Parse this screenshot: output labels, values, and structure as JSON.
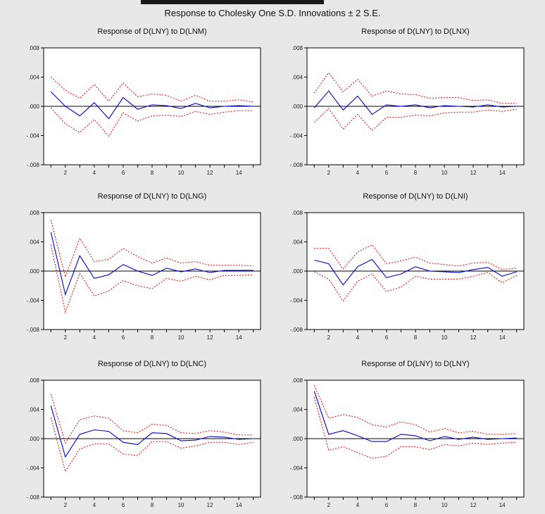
{
  "page": {
    "title": "Response to Cholesky One S.D. Innovations ± 2 S.E."
  },
  "colors": {
    "background": "#e8e8e8",
    "plot_area": "#ffffff",
    "response_line": "#0000cc",
    "band_line": "#dd0000",
    "zero_line": "#000000"
  },
  "chart_data": [
    {
      "type": "line",
      "title": "Response of D(LNY) to D(LNM)",
      "x": [
        1,
        2,
        3,
        4,
        5,
        6,
        7,
        8,
        9,
        10,
        11,
        12,
        13,
        14,
        15
      ],
      "xticks": [
        2,
        4,
        6,
        8,
        10,
        12,
        14
      ],
      "ylim": [
        -0.008,
        0.008
      ],
      "yticks": [
        -0.008,
        -0.004,
        0.0,
        0.004,
        0.008
      ],
      "ytick_labels": [
        "-.008",
        "-.004",
        ".000",
        ".004",
        ".008"
      ],
      "grid": false,
      "series": [
        {
          "role": "response",
          "values": [
            0.002,
            0.0,
            -0.0013,
            0.0005,
            -0.0017,
            0.0012,
            -0.0004,
            0.0002,
            0.0001,
            -0.0003,
            0.0004,
            -0.0002,
            0.0,
            0.0001,
            0.0
          ]
        },
        {
          "role": "upper",
          "values": [
            0.004,
            0.0022,
            0.0011,
            0.003,
            0.0007,
            0.0032,
            0.0013,
            0.0017,
            0.0015,
            0.0007,
            0.0015,
            0.0007,
            0.0007,
            0.0009,
            0.0006
          ]
        },
        {
          "role": "lower",
          "values": [
            -0.0002,
            -0.0024,
            -0.0036,
            -0.0018,
            -0.0041,
            -0.0009,
            -0.002,
            -0.0013,
            -0.0012,
            -0.0014,
            -0.0007,
            -0.0011,
            -0.0008,
            -0.0006,
            -0.0006
          ]
        }
      ]
    },
    {
      "type": "line",
      "title": "Response of D(LNY) to D(LNX)",
      "x": [
        1,
        2,
        3,
        4,
        5,
        6,
        7,
        8,
        9,
        10,
        11,
        12,
        13,
        14,
        15
      ],
      "xticks": [
        2,
        4,
        6,
        8,
        10,
        12,
        14
      ],
      "ylim": [
        -0.008,
        0.008
      ],
      "yticks": [
        -0.008,
        -0.004,
        0.0,
        0.004,
        0.008
      ],
      "ytick_labels": [
        "-.008",
        "-.004",
        ".000",
        ".004",
        ".008"
      ],
      "grid": false,
      "series": [
        {
          "role": "response",
          "values": [
            -0.0002,
            0.0021,
            -0.0005,
            0.0014,
            -0.0011,
            0.0002,
            0.0,
            0.0002,
            -0.0002,
            0.0001,
            0.0,
            -0.0001,
            0.0002,
            -0.0001,
            0.0
          ]
        },
        {
          "role": "upper",
          "values": [
            0.0018,
            0.0046,
            0.002,
            0.0037,
            0.0014,
            0.0021,
            0.0017,
            0.0016,
            0.0011,
            0.0012,
            0.0012,
            0.0008,
            0.0009,
            0.0004,
            0.0004
          ]
        },
        {
          "role": "lower",
          "values": [
            -0.0022,
            -0.0003,
            -0.0031,
            -0.0011,
            -0.0033,
            -0.0015,
            -0.0015,
            -0.0012,
            -0.0013,
            -0.0009,
            -0.0008,
            -0.0008,
            -0.0005,
            -0.0007,
            -0.0004
          ]
        }
      ]
    },
    {
      "type": "line",
      "title": "Response of D(LNY) to D(LNG)",
      "x": [
        1,
        2,
        3,
        4,
        5,
        6,
        7,
        8,
        9,
        10,
        11,
        12,
        13,
        14,
        15
      ],
      "xticks": [
        2,
        4,
        6,
        8,
        10,
        12,
        14
      ],
      "ylim": [
        -0.008,
        0.008
      ],
      "yticks": [
        -0.008,
        -0.004,
        0.0,
        0.004,
        0.008
      ],
      "ytick_labels": [
        "-.008",
        "-.004",
        ".000",
        ".004",
        ".008"
      ],
      "grid": false,
      "series": [
        {
          "role": "response",
          "values": [
            0.0053,
            -0.0032,
            0.0021,
            -0.001,
            -0.0005,
            0.0009,
            0.0,
            -0.0006,
            0.0004,
            -0.0001,
            0.0003,
            -0.0002,
            0.0001,
            0.0001,
            0.0001
          ]
        },
        {
          "role": "upper",
          "values": [
            0.007,
            -0.0008,
            0.0045,
            0.0013,
            0.0016,
            0.0031,
            0.002,
            0.0011,
            0.0018,
            0.0011,
            0.0013,
            0.0008,
            0.0008,
            0.0008,
            0.0007
          ]
        },
        {
          "role": "lower",
          "values": [
            0.0036,
            -0.0056,
            -0.0003,
            -0.0034,
            -0.0027,
            -0.0013,
            -0.002,
            -0.0024,
            -0.001,
            -0.0014,
            -0.0007,
            -0.0012,
            -0.0006,
            -0.0006,
            -0.0005
          ]
        }
      ]
    },
    {
      "type": "line",
      "title": "Response of D(LNY) to D(LNI)",
      "x": [
        1,
        2,
        3,
        4,
        5,
        6,
        7,
        8,
        9,
        10,
        11,
        12,
        13,
        14,
        15
      ],
      "xticks": [
        2,
        4,
        6,
        8,
        10,
        12,
        14
      ],
      "ylim": [
        -0.008,
        0.008
      ],
      "yticks": [
        -0.008,
        -0.004,
        0.0,
        0.004,
        0.008
      ],
      "ytick_labels": [
        "-.008",
        "-.004",
        ".000",
        ".004",
        ".008"
      ],
      "grid": false,
      "series": [
        {
          "role": "response",
          "values": [
            0.0015,
            0.001,
            -0.0019,
            0.0006,
            0.0016,
            -0.0009,
            -0.0004,
            0.0006,
            0.0,
            -0.0001,
            -0.0002,
            0.0002,
            0.0005,
            -0.0007,
            -0.0001
          ]
        },
        {
          "role": "upper",
          "values": [
            0.0031,
            0.0031,
            0.0003,
            0.0026,
            0.0036,
            0.001,
            0.0014,
            0.0019,
            0.0011,
            0.0009,
            0.0007,
            0.0011,
            0.0012,
            0.0002,
            0.0004
          ]
        },
        {
          "role": "lower",
          "values": [
            -0.0001,
            -0.0011,
            -0.0041,
            -0.0014,
            -0.0004,
            -0.0028,
            -0.0022,
            -0.0007,
            -0.0011,
            -0.0011,
            -0.0011,
            -0.0007,
            -0.0002,
            -0.0016,
            -0.0006
          ]
        }
      ]
    },
    {
      "type": "line",
      "title": "Response of D(LNY) to D(LNC)",
      "x": [
        1,
        2,
        3,
        4,
        5,
        6,
        7,
        8,
        9,
        10,
        11,
        12,
        13,
        14,
        15
      ],
      "xticks": [
        2,
        4,
        6,
        8,
        10,
        12,
        14
      ],
      "ylim": [
        -0.008,
        0.008
      ],
      "yticks": [
        -0.008,
        -0.004,
        0.0,
        0.004,
        0.008
      ],
      "ytick_labels": [
        "-.008",
        "-.004",
        ".000",
        ".004",
        ".008"
      ],
      "grid": false,
      "series": [
        {
          "role": "response",
          "values": [
            0.0045,
            -0.0025,
            0.0006,
            0.0012,
            0.001,
            -0.0005,
            -0.0008,
            0.0008,
            0.0007,
            -0.0003,
            -0.0002,
            0.0003,
            0.0002,
            -0.0001,
            0.0
          ]
        },
        {
          "role": "upper",
          "values": [
            0.0061,
            -0.0006,
            0.0026,
            0.0031,
            0.0028,
            0.0011,
            0.0008,
            0.002,
            0.0018,
            0.0008,
            0.0007,
            0.0011,
            0.0009,
            0.0005,
            0.0005
          ]
        },
        {
          "role": "lower",
          "values": [
            0.0029,
            -0.0045,
            -0.0014,
            -0.0007,
            -0.0007,
            -0.0021,
            -0.0023,
            -0.0004,
            -0.0004,
            -0.0013,
            -0.001,
            -0.0005,
            -0.0005,
            -0.0008,
            -0.0005
          ]
        }
      ]
    },
    {
      "type": "line",
      "title": "Response of D(LNY) to D(LNY)",
      "x": [
        1,
        2,
        3,
        4,
        5,
        6,
        7,
        8,
        9,
        10,
        11,
        12,
        13,
        14,
        15
      ],
      "xticks": [
        2,
        4,
        6,
        8,
        10,
        12,
        14
      ],
      "ylim": [
        -0.008,
        0.008
      ],
      "yticks": [
        -0.008,
        -0.004,
        0.0,
        0.004,
        0.008
      ],
      "ytick_labels": [
        "-.008",
        "-.004",
        ".000",
        ".004",
        ".008"
      ],
      "grid": false,
      "series": [
        {
          "role": "response",
          "values": [
            0.0065,
            0.0006,
            0.0011,
            0.0004,
            -0.0004,
            -0.0004,
            0.0006,
            0.0004,
            -0.0003,
            0.0003,
            -0.0001,
            0.0002,
            -0.0001,
            0.0,
            0.0001
          ]
        },
        {
          "role": "upper",
          "values": [
            0.0073,
            0.0028,
            0.0033,
            0.0029,
            0.0019,
            0.0016,
            0.0023,
            0.0019,
            0.0009,
            0.0014,
            0.0008,
            0.001,
            0.0006,
            0.0006,
            0.0007
          ]
        },
        {
          "role": "lower",
          "values": [
            0.0057,
            -0.0016,
            -0.0011,
            -0.0019,
            -0.0027,
            -0.0024,
            -0.0011,
            -0.0011,
            -0.0015,
            -0.0008,
            -0.001,
            -0.0006,
            -0.0008,
            -0.0006,
            -0.0005
          ]
        }
      ]
    }
  ]
}
